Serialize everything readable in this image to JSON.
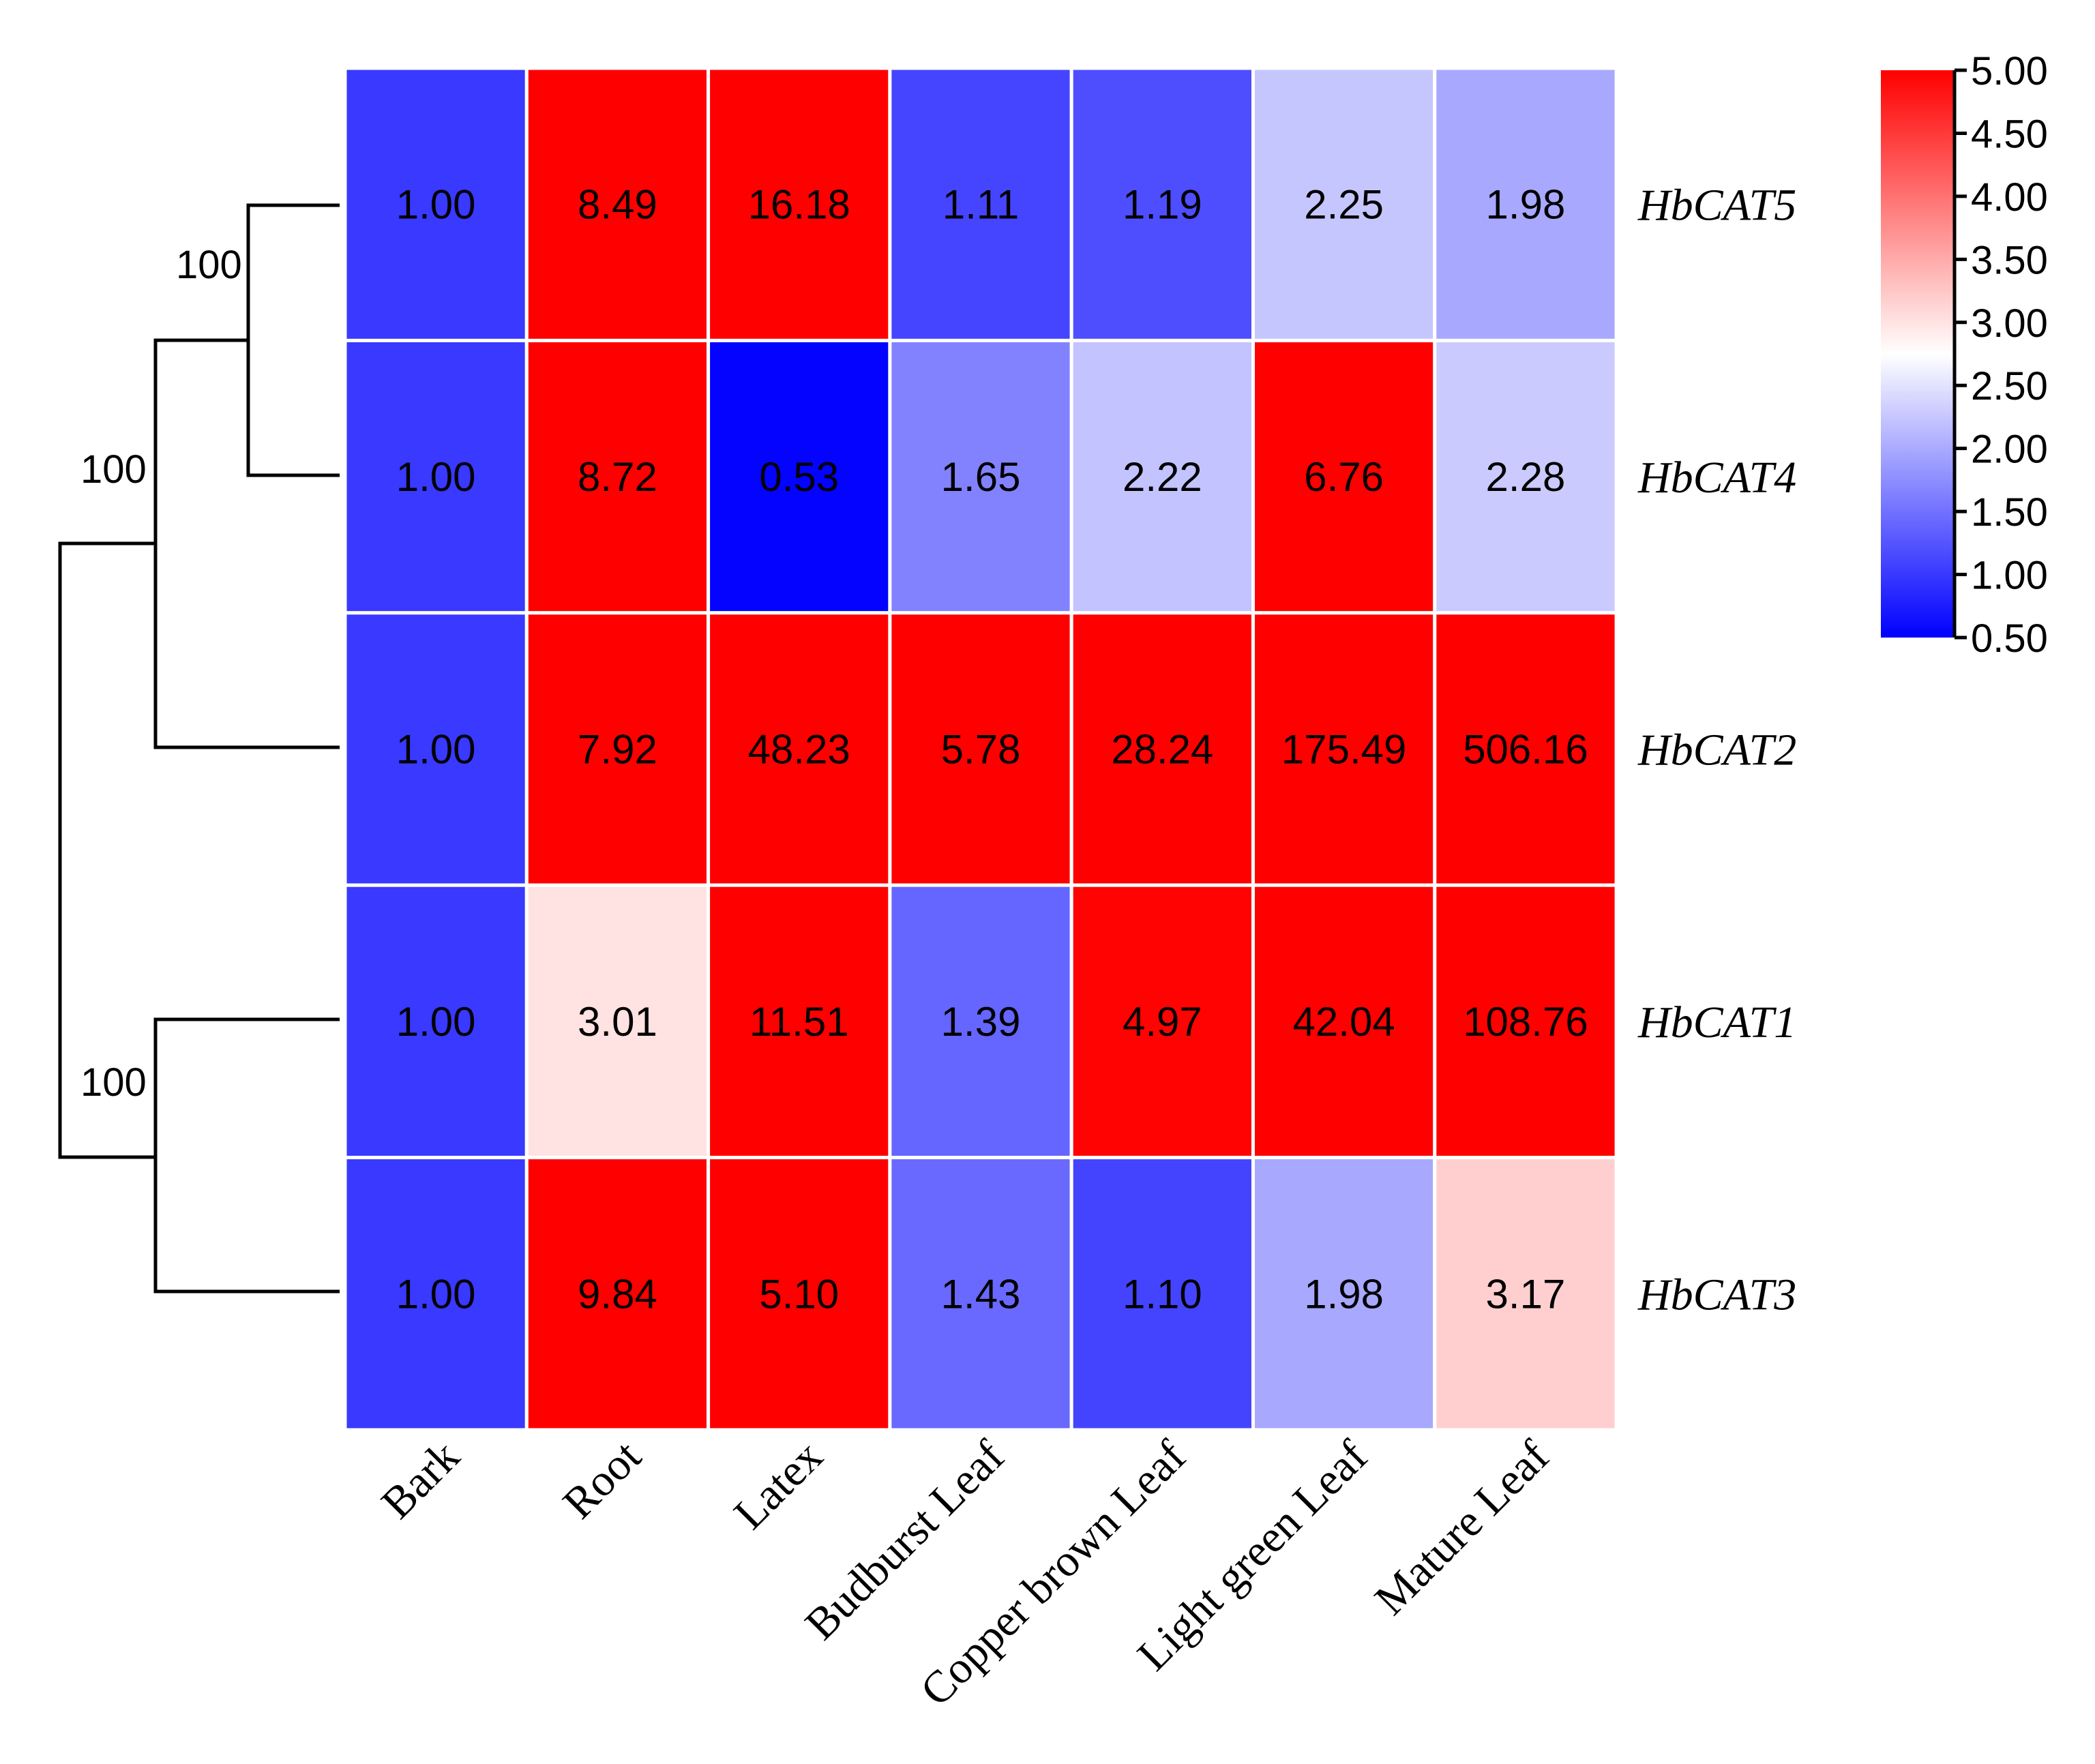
{
  "chart_data": {
    "type": "heatmap",
    "title": "",
    "rows": [
      "HbCAT5",
      "HbCAT4",
      "HbCAT2",
      "HbCAT1",
      "HbCAT3"
    ],
    "columns": [
      "Bark",
      "Root",
      "Latex",
      "Budburst Leaf",
      "Copper brown Leaf",
      "Light green Leaf",
      "Mature Leaf"
    ],
    "values": [
      [
        1.0,
        8.49,
        16.18,
        1.11,
        1.19,
        2.25,
        1.98
      ],
      [
        1.0,
        8.72,
        0.53,
        1.65,
        2.22,
        6.76,
        2.28
      ],
      [
        1.0,
        7.92,
        48.23,
        5.78,
        28.24,
        175.49,
        506.16
      ],
      [
        1.0,
        3.01,
        11.51,
        1.39,
        4.97,
        42.04,
        108.76
      ],
      [
        1.0,
        9.84,
        5.1,
        1.43,
        1.1,
        1.98,
        3.17
      ]
    ],
    "value_labels": [
      [
        "1.00",
        "8.49",
        "16.18",
        "1.11",
        "1.19",
        "2.25",
        "1.98"
      ],
      [
        "1.00",
        "8.72",
        "0.53",
        "1.65",
        "2.22",
        "6.76",
        "2.28"
      ],
      [
        "1.00",
        "7.92",
        "48.23",
        "5.78",
        "28.24",
        "175.49",
        "506.16"
      ],
      [
        "1.00",
        "3.01",
        "11.51",
        "1.39",
        "4.97",
        "42.04",
        "108.76"
      ],
      [
        "1.00",
        "9.84",
        "5.10",
        "1.43",
        "1.10",
        "1.98",
        "3.17"
      ]
    ],
    "colorbar": {
      "min": 0.5,
      "max": 5.0,
      "center": 2.75,
      "ticks": [
        "0.50",
        "1.00",
        "1.50",
        "2.00",
        "2.50",
        "3.00",
        "3.50",
        "4.00",
        "4.50",
        "5.00"
      ],
      "low_color": "#0000ff",
      "mid_color": "#ffffff",
      "high_color": "#ff0000"
    },
    "dendrogram": {
      "bootstrap_labels": [
        "100",
        "100",
        "100"
      ]
    },
    "cell_border_color": "#ffffff",
    "line_color": "#000000"
  }
}
